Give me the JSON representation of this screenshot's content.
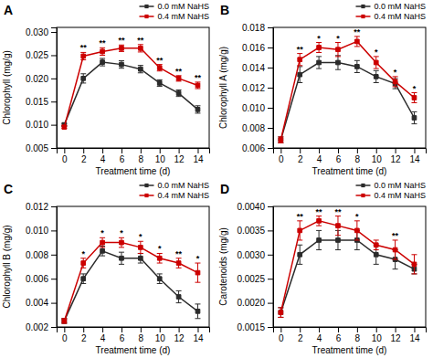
{
  "chart_data": [
    {
      "type": "line",
      "title": "A",
      "xlabel": "Treatment time (d)",
      "ylabel": "Chlorophyll (mg/g)",
      "x": [
        0,
        2,
        4,
        6,
        8,
        10,
        12,
        14
      ],
      "xlim": [
        -0.8,
        15.2
      ],
      "xticks": [
        0,
        2,
        4,
        6,
        8,
        10,
        12,
        14
      ],
      "ylim": [
        0.005,
        0.031
      ],
      "yticks": [
        0.005,
        {
          "value": 0.01,
          "label": "0.010"
        },
        0.015,
        {
          "value": 0.02,
          "label": "0.020"
        },
        0.025,
        {
          "value": 0.03,
          "label": "0.030"
        }
      ],
      "legend": "upper right",
      "series": [
        {
          "name": "0.0 mM NaHS",
          "color": "#2b2b2b",
          "marker": "square",
          "values": [
            0.01,
            0.02,
            0.0235,
            0.023,
            0.022,
            0.019,
            0.0168,
            0.0133
          ],
          "errors": [
            0.0003,
            0.001,
            0.0008,
            0.0008,
            0.0008,
            0.0007,
            0.0007,
            0.0008
          ]
        },
        {
          "name": "0.4 mM NaHS",
          "color": "#cc0000",
          "marker": "square",
          "values": [
            0.0095,
            0.0248,
            0.0258,
            0.0265,
            0.0265,
            0.0223,
            0.02,
            0.0185
          ],
          "errors": [
            0.0003,
            0.0008,
            0.0008,
            0.0007,
            0.0008,
            0.0007,
            0.0006,
            0.0007
          ]
        }
      ],
      "annotations": [
        {
          "x": 2,
          "text": "**"
        },
        {
          "x": 4,
          "text": "**"
        },
        {
          "x": 6,
          "text": "**"
        },
        {
          "x": 8,
          "text": "**"
        },
        {
          "x": 10,
          "text": "**"
        },
        {
          "x": 12,
          "text": "**"
        },
        {
          "x": 14,
          "text": "**"
        }
      ]
    },
    {
      "type": "line",
      "title": "B",
      "xlabel": "Treatment time (d)",
      "ylabel": "Chlorophyll A (mg/g)",
      "x": [
        0,
        2,
        4,
        6,
        8,
        10,
        12,
        14
      ],
      "xlim": [
        -0.8,
        15.2
      ],
      "xticks": [
        0,
        2,
        4,
        6,
        8,
        10,
        12,
        14
      ],
      "ylim": [
        0.006,
        0.018
      ],
      "yticks": [
        0.006,
        0.008,
        {
          "value": 0.01,
          "label": "0.010"
        },
        0.012,
        0.014,
        0.016,
        0.018
      ],
      "legend": "upper right",
      "series": [
        {
          "name": "0.0 mM NaHS",
          "color": "#2b2b2b",
          "marker": "square",
          "values": [
            0.0068,
            0.0133,
            0.0145,
            0.0145,
            0.0141,
            0.0131,
            0.0124,
            0.009
          ],
          "errors": [
            0.0003,
            0.0008,
            0.0006,
            0.0007,
            0.0006,
            0.0006,
            0.0005,
            0.0006
          ]
        },
        {
          "name": "0.4 mM NaHS",
          "color": "#cc0000",
          "marker": "square",
          "values": [
            0.0068,
            0.0148,
            0.016,
            0.0158,
            0.0166,
            0.0145,
            0.0126,
            0.011
          ],
          "errors": [
            0.0003,
            0.0006,
            0.0005,
            0.0007,
            0.0005,
            0.0006,
            0.0005,
            0.0005
          ]
        }
      ],
      "annotations": [
        {
          "x": 2,
          "text": "**"
        },
        {
          "x": 4,
          "text": "*"
        },
        {
          "x": 6,
          "text": "*"
        },
        {
          "x": 8,
          "text": "**"
        },
        {
          "x": 10,
          "text": "*"
        },
        {
          "x": 12,
          "text": "*"
        },
        {
          "x": 14,
          "text": "*"
        }
      ]
    },
    {
      "type": "line",
      "title": "C",
      "xlabel": "Treatment time (d)",
      "ylabel": "Chlorophyll B (mg/g)",
      "x": [
        0,
        2,
        4,
        6,
        8,
        10,
        12,
        14
      ],
      "xlim": [
        -0.8,
        15.2
      ],
      "xticks": [
        0,
        2,
        4,
        6,
        8,
        10,
        12,
        14
      ],
      "ylim": [
        0.002,
        0.012
      ],
      "yticks": [
        0.002,
        0.004,
        0.006,
        0.008,
        {
          "value": 0.01,
          "label": "0.010"
        },
        0.012
      ],
      "legend": "upper right",
      "series": [
        {
          "name": "0.0 mM NaHS",
          "color": "#2b2b2b",
          "marker": "square",
          "values": [
            0.0025,
            0.006,
            0.0083,
            0.0077,
            0.0077,
            0.006,
            0.0045,
            0.0033
          ],
          "errors": [
            0.0002,
            0.0004,
            0.0004,
            0.0005,
            0.0004,
            0.0004,
            0.0005,
            0.0006
          ]
        },
        {
          "name": "0.4 mM NaHS",
          "color": "#cc0000",
          "marker": "square",
          "values": [
            0.0025,
            0.0073,
            0.009,
            0.009,
            0.0086,
            0.0077,
            0.0073,
            0.0065
          ],
          "errors": [
            0.0002,
            0.0004,
            0.0004,
            0.0004,
            0.0005,
            0.0004,
            0.0004,
            0.0008
          ]
        }
      ],
      "annotations": [
        {
          "x": 2,
          "text": "*"
        },
        {
          "x": 4,
          "text": "*"
        },
        {
          "x": 6,
          "text": "*"
        },
        {
          "x": 8,
          "text": "*"
        },
        {
          "x": 10,
          "text": "*"
        },
        {
          "x": 12,
          "text": "**"
        },
        {
          "x": 14,
          "text": "*"
        }
      ]
    },
    {
      "type": "line",
      "title": "D",
      "xlabel": "Treatment time (d)",
      "ylabel": "Carotenoids (mg/g)",
      "x": [
        0,
        2,
        4,
        6,
        8,
        10,
        12,
        14
      ],
      "xlim": [
        -0.8,
        15.2
      ],
      "xticks": [
        0,
        2,
        4,
        6,
        8,
        10,
        12,
        14
      ],
      "ylim": [
        0.0015,
        0.004
      ],
      "yticks": [
        0.0015,
        {
          "value": 0.002,
          "label": "0.0020"
        },
        0.0025,
        {
          "value": 0.003,
          "label": "0.0030"
        },
        0.0035,
        {
          "value": 0.004,
          "label": "0.0040"
        }
      ],
      "legend": "upper right",
      "series": [
        {
          "name": "0.0 mM NaHS",
          "color": "#2b2b2b",
          "marker": "square",
          "values": [
            0.0018,
            0.003,
            0.0033,
            0.0033,
            0.0033,
            0.003,
            0.0029,
            0.0027
          ],
          "errors": [
            0.0001,
            0.0002,
            0.0002,
            0.0002,
            0.0002,
            0.0002,
            0.0002,
            0.0001
          ]
        },
        {
          "name": "0.4 mM NaHS",
          "color": "#cc0000",
          "marker": "square",
          "values": [
            0.0018,
            0.0035,
            0.0037,
            0.0036,
            0.0035,
            0.0032,
            0.0031,
            0.0028
          ],
          "errors": [
            0.0001,
            0.0002,
            0.0001,
            0.0002,
            0.0002,
            0.0001,
            0.0002,
            0.0002
          ]
        }
      ],
      "annotations": [
        {
          "x": 2,
          "text": "**"
        },
        {
          "x": 4,
          "text": "**"
        },
        {
          "x": 6,
          "text": "**"
        },
        {
          "x": 8,
          "text": "*"
        },
        {
          "x": 12,
          "text": "**"
        }
      ]
    }
  ]
}
